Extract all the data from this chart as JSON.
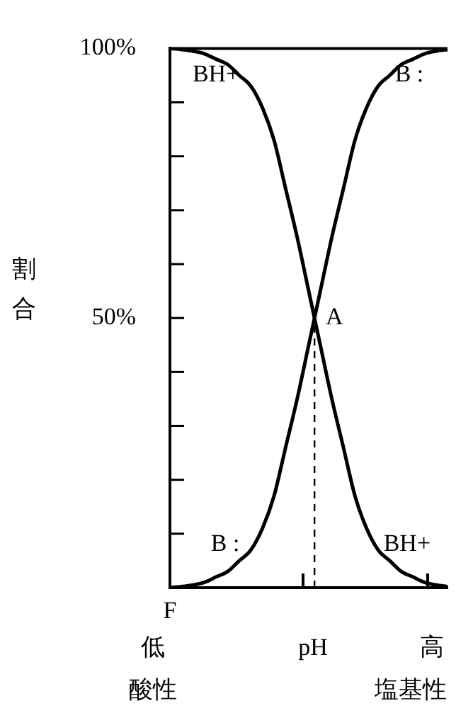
{
  "chart_data": {
    "type": "line",
    "xlabel": "pH",
    "ylabel": "割合",
    "categories": [
      null,
      null,
      null,
      null,
      null,
      null,
      null,
      null,
      null,
      null,
      null,
      null,
      null,
      null,
      null,
      null,
      null,
      null,
      null,
      null,
      null,
      null,
      null,
      null,
      null
    ],
    "ylim": [
      0,
      100
    ],
    "yticks": [
      {
        "value": 0,
        "label": null
      },
      {
        "value": 10,
        "label": null
      },
      {
        "value": 20,
        "label": null
      },
      {
        "value": 30,
        "label": null
      },
      {
        "value": 40,
        "label": null
      },
      {
        "value": 50,
        "label": "50%"
      },
      {
        "value": 60,
        "label": null
      },
      {
        "value": 70,
        "label": null
      },
      {
        "value": 80,
        "label": null
      },
      {
        "value": 90,
        "label": null
      },
      {
        "value": 100,
        "label": "100%"
      }
    ],
    "series": [
      {
        "name": "BH+",
        "color": "#000000",
        "values": [
          100,
          99.8,
          99.5,
          99,
          98,
          97,
          95,
          93,
          89,
          83,
          74,
          65,
          55,
          45,
          35,
          26,
          17,
          11,
          7,
          5,
          3,
          2,
          1,
          0.5,
          0.2
        ]
      },
      {
        "name": "B :",
        "color": "#000000",
        "values": [
          0,
          0.2,
          0.5,
          1,
          2,
          3,
          5,
          7,
          11,
          17,
          26,
          35,
          45,
          55,
          65,
          74,
          83,
          89,
          93,
          95,
          97,
          98,
          99,
          99.5,
          99.8
        ]
      }
    ],
    "annotations": [
      "A",
      "F",
      "低",
      "酸性",
      "高",
      "塩基性"
    ],
    "legend": false,
    "grid": false,
    "marker": "none",
    "line_style": "solid"
  }
}
